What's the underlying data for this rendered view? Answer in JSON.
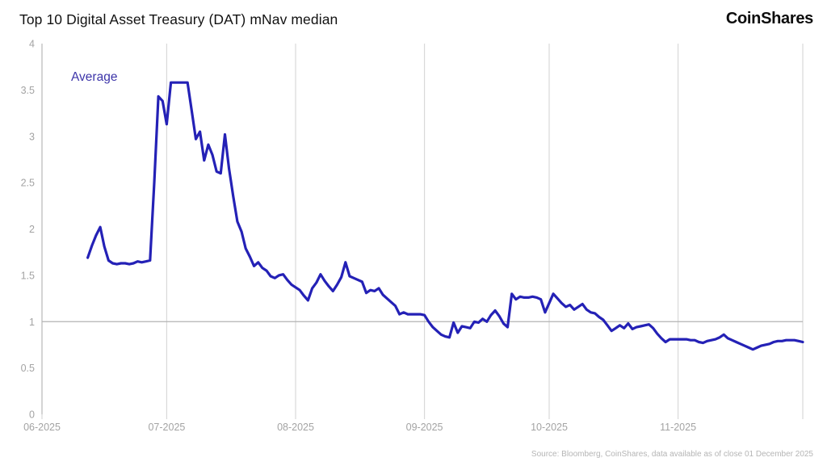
{
  "header": {
    "title": "Top 10 Digital Asset Treasury (DAT) mNav median",
    "brand": "CoinShares"
  },
  "legend": {
    "label": "Average"
  },
  "footer": {
    "source": "Source: Bloomberg, CoinShares, data available as of close 01 December 2025"
  },
  "colors": {
    "line": "#2421b6",
    "legend_text": "#3d35a9",
    "grid": "#d9d9d9",
    "axis": "#c2c2c2",
    "ref_line": "#b3b3b3",
    "tick_text": "#a3a3a3",
    "title_text": "#121212",
    "source_text": "#b5b5b5"
  },
  "chart_data": {
    "type": "line",
    "title": "Top 10 Digital Asset Treasury (DAT) mNav median",
    "xlabel": "",
    "ylabel": "",
    "ylim": [
      0,
      4
    ],
    "grid": "vertical-monthly",
    "legend_position": "top-left-inside",
    "reference_line": 1,
    "x_domain": [
      "2025-06-01",
      "2025-12-01"
    ],
    "y_ticks": [
      "0",
      "0.5",
      "1",
      "1.5",
      "2",
      "2.5",
      "3",
      "3.5",
      "4"
    ],
    "x_ticks": [
      {
        "label": "06-2025",
        "date": "2025-06-01"
      },
      {
        "label": "07-2025",
        "date": "2025-07-01"
      },
      {
        "label": "08-2025",
        "date": "2025-08-01"
      },
      {
        "label": "09-2025",
        "date": "2025-09-01"
      },
      {
        "label": "10-2025",
        "date": "2025-10-01"
      },
      {
        "label": "11-2025",
        "date": "2025-11-01"
      },
      {
        "label": "",
        "date": "2025-12-01"
      }
    ],
    "series": [
      {
        "name": "Average",
        "color": "#2421b6",
        "points": [
          [
            "2025-06-12",
            1.69
          ],
          [
            "2025-06-13",
            1.82
          ],
          [
            "2025-06-14",
            1.93
          ],
          [
            "2025-06-15",
            2.02
          ],
          [
            "2025-06-16",
            1.81
          ],
          [
            "2025-06-17",
            1.66
          ],
          [
            "2025-06-18",
            1.63
          ],
          [
            "2025-06-19",
            1.62
          ],
          [
            "2025-06-20",
            1.63
          ],
          [
            "2025-06-21",
            1.63
          ],
          [
            "2025-06-22",
            1.62
          ],
          [
            "2025-06-23",
            1.63
          ],
          [
            "2025-06-24",
            1.65
          ],
          [
            "2025-06-25",
            1.64
          ],
          [
            "2025-06-26",
            1.65
          ],
          [
            "2025-06-27",
            1.66
          ],
          [
            "2025-06-28",
            2.5
          ],
          [
            "2025-06-29",
            3.43
          ],
          [
            "2025-06-30",
            3.38
          ],
          [
            "2025-07-01",
            3.13
          ],
          [
            "2025-07-02",
            3.58
          ],
          [
            "2025-07-03",
            3.58
          ],
          [
            "2025-07-04",
            3.58
          ],
          [
            "2025-07-05",
            3.58
          ],
          [
            "2025-07-06",
            3.58
          ],
          [
            "2025-07-07",
            3.28
          ],
          [
            "2025-07-08",
            2.97
          ],
          [
            "2025-07-09",
            3.05
          ],
          [
            "2025-07-10",
            2.74
          ],
          [
            "2025-07-11",
            2.91
          ],
          [
            "2025-07-12",
            2.8
          ],
          [
            "2025-07-13",
            2.62
          ],
          [
            "2025-07-14",
            2.6
          ],
          [
            "2025-07-15",
            3.02
          ],
          [
            "2025-07-16",
            2.65
          ],
          [
            "2025-07-17",
            2.35
          ],
          [
            "2025-07-18",
            2.08
          ],
          [
            "2025-07-19",
            1.97
          ],
          [
            "2025-07-20",
            1.79
          ],
          [
            "2025-07-21",
            1.7
          ],
          [
            "2025-07-22",
            1.6
          ],
          [
            "2025-07-23",
            1.64
          ],
          [
            "2025-07-24",
            1.58
          ],
          [
            "2025-07-25",
            1.55
          ],
          [
            "2025-07-26",
            1.49
          ],
          [
            "2025-07-27",
            1.47
          ],
          [
            "2025-07-28",
            1.5
          ],
          [
            "2025-07-29",
            1.51
          ],
          [
            "2025-07-30",
            1.45
          ],
          [
            "2025-07-31",
            1.4
          ],
          [
            "2025-08-01",
            1.37
          ],
          [
            "2025-08-02",
            1.34
          ],
          [
            "2025-08-03",
            1.28
          ],
          [
            "2025-08-04",
            1.23
          ],
          [
            "2025-08-05",
            1.36
          ],
          [
            "2025-08-06",
            1.42
          ],
          [
            "2025-08-07",
            1.51
          ],
          [
            "2025-08-08",
            1.44
          ],
          [
            "2025-08-09",
            1.38
          ],
          [
            "2025-08-10",
            1.33
          ],
          [
            "2025-08-11",
            1.4
          ],
          [
            "2025-08-12",
            1.48
          ],
          [
            "2025-08-13",
            1.64
          ],
          [
            "2025-08-14",
            1.49
          ],
          [
            "2025-08-15",
            1.47
          ],
          [
            "2025-08-16",
            1.45
          ],
          [
            "2025-08-17",
            1.43
          ],
          [
            "2025-08-18",
            1.31
          ],
          [
            "2025-08-19",
            1.34
          ],
          [
            "2025-08-20",
            1.33
          ],
          [
            "2025-08-21",
            1.36
          ],
          [
            "2025-08-22",
            1.29
          ],
          [
            "2025-08-23",
            1.25
          ],
          [
            "2025-08-24",
            1.21
          ],
          [
            "2025-08-25",
            1.17
          ],
          [
            "2025-08-26",
            1.08
          ],
          [
            "2025-08-27",
            1.1
          ],
          [
            "2025-08-28",
            1.08
          ],
          [
            "2025-08-29",
            1.08
          ],
          [
            "2025-08-30",
            1.08
          ],
          [
            "2025-08-31",
            1.08
          ],
          [
            "2025-09-01",
            1.07
          ],
          [
            "2025-09-02",
            1.0
          ],
          [
            "2025-09-03",
            0.94
          ],
          [
            "2025-09-04",
            0.9
          ],
          [
            "2025-09-05",
            0.86
          ],
          [
            "2025-09-06",
            0.84
          ],
          [
            "2025-09-07",
            0.83
          ],
          [
            "2025-09-08",
            0.99
          ],
          [
            "2025-09-09",
            0.88
          ],
          [
            "2025-09-10",
            0.95
          ],
          [
            "2025-09-11",
            0.94
          ],
          [
            "2025-09-12",
            0.93
          ],
          [
            "2025-09-13",
            1.0
          ],
          [
            "2025-09-14",
            0.99
          ],
          [
            "2025-09-15",
            1.03
          ],
          [
            "2025-09-16",
            1.0
          ],
          [
            "2025-09-17",
            1.07
          ],
          [
            "2025-09-18",
            1.12
          ],
          [
            "2025-09-19",
            1.06
          ],
          [
            "2025-09-20",
            0.98
          ],
          [
            "2025-09-21",
            0.94
          ],
          [
            "2025-09-22",
            1.3
          ],
          [
            "2025-09-23",
            1.24
          ],
          [
            "2025-09-24",
            1.27
          ],
          [
            "2025-09-25",
            1.26
          ],
          [
            "2025-09-26",
            1.26
          ],
          [
            "2025-09-27",
            1.27
          ],
          [
            "2025-09-28",
            1.26
          ],
          [
            "2025-09-29",
            1.24
          ],
          [
            "2025-09-30",
            1.1
          ],
          [
            "2025-10-01",
            1.2
          ],
          [
            "2025-10-02",
            1.3
          ],
          [
            "2025-10-03",
            1.25
          ],
          [
            "2025-10-04",
            1.2
          ],
          [
            "2025-10-05",
            1.16
          ],
          [
            "2025-10-06",
            1.18
          ],
          [
            "2025-10-07",
            1.13
          ],
          [
            "2025-10-08",
            1.16
          ],
          [
            "2025-10-09",
            1.19
          ],
          [
            "2025-10-10",
            1.13
          ],
          [
            "2025-10-11",
            1.1
          ],
          [
            "2025-10-12",
            1.09
          ],
          [
            "2025-10-13",
            1.05
          ],
          [
            "2025-10-14",
            1.02
          ],
          [
            "2025-10-15",
            0.96
          ],
          [
            "2025-10-16",
            0.9
          ],
          [
            "2025-10-17",
            0.93
          ],
          [
            "2025-10-18",
            0.96
          ],
          [
            "2025-10-19",
            0.93
          ],
          [
            "2025-10-20",
            0.98
          ],
          [
            "2025-10-21",
            0.92
          ],
          [
            "2025-10-22",
            0.94
          ],
          [
            "2025-10-23",
            0.95
          ],
          [
            "2025-10-24",
            0.96
          ],
          [
            "2025-10-25",
            0.97
          ],
          [
            "2025-10-26",
            0.93
          ],
          [
            "2025-10-27",
            0.87
          ],
          [
            "2025-10-28",
            0.82
          ],
          [
            "2025-10-29",
            0.78
          ],
          [
            "2025-10-30",
            0.81
          ],
          [
            "2025-10-31",
            0.81
          ],
          [
            "2025-11-01",
            0.81
          ],
          [
            "2025-11-02",
            0.81
          ],
          [
            "2025-11-03",
            0.81
          ],
          [
            "2025-11-04",
            0.8
          ],
          [
            "2025-11-05",
            0.8
          ],
          [
            "2025-11-06",
            0.78
          ],
          [
            "2025-11-07",
            0.77
          ],
          [
            "2025-11-08",
            0.79
          ],
          [
            "2025-11-09",
            0.8
          ],
          [
            "2025-11-10",
            0.81
          ],
          [
            "2025-11-11",
            0.83
          ],
          [
            "2025-11-12",
            0.86
          ],
          [
            "2025-11-13",
            0.82
          ],
          [
            "2025-11-14",
            0.8
          ],
          [
            "2025-11-15",
            0.78
          ],
          [
            "2025-11-16",
            0.76
          ],
          [
            "2025-11-17",
            0.74
          ],
          [
            "2025-11-18",
            0.72
          ],
          [
            "2025-11-19",
            0.7
          ],
          [
            "2025-11-20",
            0.72
          ],
          [
            "2025-11-21",
            0.74
          ],
          [
            "2025-11-22",
            0.75
          ],
          [
            "2025-11-23",
            0.76
          ],
          [
            "2025-11-24",
            0.78
          ],
          [
            "2025-11-25",
            0.79
          ],
          [
            "2025-11-26",
            0.79
          ],
          [
            "2025-11-27",
            0.8
          ],
          [
            "2025-11-28",
            0.8
          ],
          [
            "2025-11-29",
            0.8
          ],
          [
            "2025-11-30",
            0.79
          ],
          [
            "2025-12-01",
            0.78
          ]
        ]
      }
    ]
  }
}
